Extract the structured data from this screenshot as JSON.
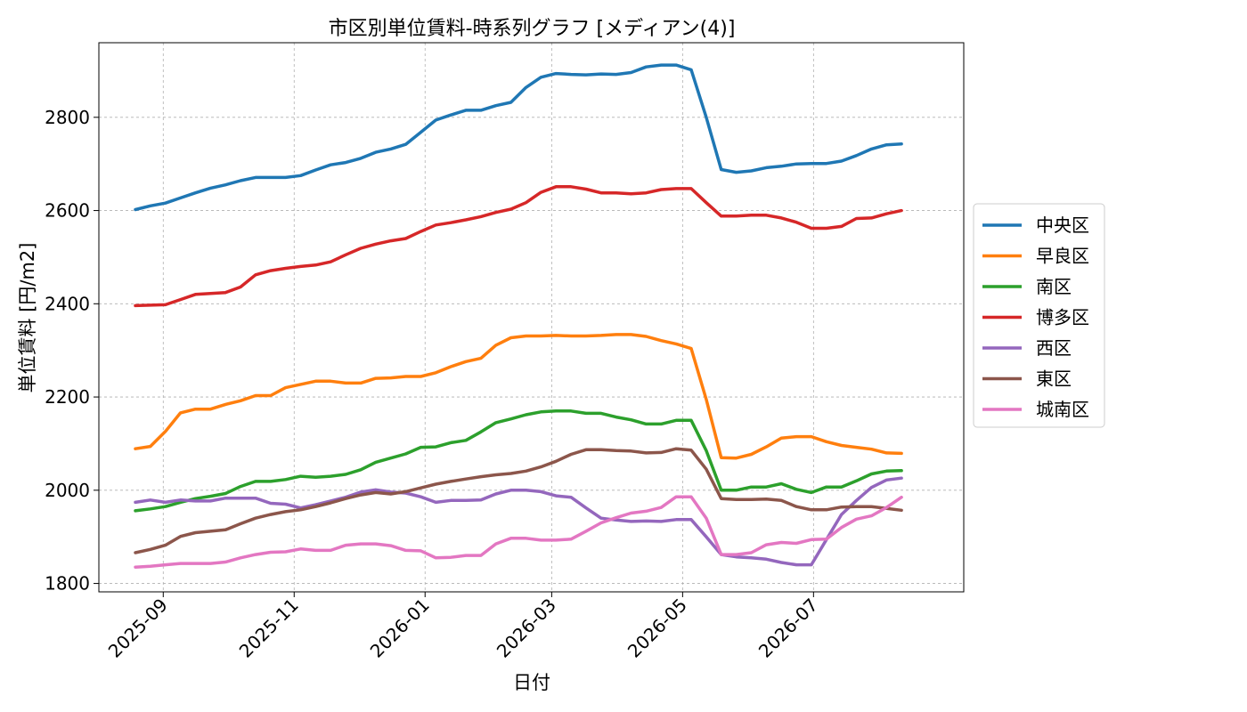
{
  "chart_data": {
    "type": "line",
    "title": "市区別単位賃料-時系列グラフ [メディアン(4)]",
    "xlabel": "日付",
    "ylabel": "単位賃料 [円/m2]",
    "ylim": [
      1782,
      2960
    ],
    "yticks": [
      1800,
      2000,
      2200,
      2400,
      2600,
      2800
    ],
    "xticks": [
      "2025-09",
      "2025-11",
      "2026-01",
      "2026-03",
      "2026-05",
      "2026-07"
    ],
    "xlim": [
      "2025-08-02",
      "2026-09-09"
    ],
    "grid": true,
    "legend_position": "right",
    "x": [
      "2025-08-19",
      "2025-08-26",
      "2025-09-02",
      "2025-09-09",
      "2025-09-16",
      "2025-09-23",
      "2025-09-30",
      "2025-10-07",
      "2025-10-14",
      "2025-10-21",
      "2025-10-28",
      "2025-11-04",
      "2025-11-11",
      "2025-11-18",
      "2025-11-25",
      "2025-12-02",
      "2025-12-09",
      "2025-12-16",
      "2025-12-23",
      "2025-12-30",
      "2026-01-06",
      "2026-01-13",
      "2026-01-20",
      "2026-01-27",
      "2026-02-03",
      "2026-02-10",
      "2026-02-17",
      "2026-02-24",
      "2026-03-03",
      "2026-03-10",
      "2026-03-17",
      "2026-03-24",
      "2026-03-31",
      "2026-04-07",
      "2026-04-14",
      "2026-04-21",
      "2026-04-28",
      "2026-05-05",
      "2026-05-12",
      "2026-05-19",
      "2026-05-26",
      "2026-06-02",
      "2026-06-09",
      "2026-06-16",
      "2026-06-23",
      "2026-06-30",
      "2026-07-07",
      "2026-07-14",
      "2026-07-21",
      "2026-07-28",
      "2026-08-04",
      "2026-08-11"
    ],
    "series": [
      {
        "name": "中央区",
        "color": "#1f77b4",
        "values": [
          2602,
          2610,
          2616,
          2627,
          2638,
          2648,
          2655,
          2664,
          2671,
          2671,
          2671,
          2675,
          2687,
          2698,
          2703,
          2712,
          2725,
          2732,
          2742,
          2768,
          2794,
          2805,
          2815,
          2815,
          2825,
          2832,
          2864,
          2886,
          2894,
          2892,
          2891,
          2893,
          2892,
          2896,
          2908,
          2912,
          2912,
          2902,
          2800,
          2688,
          2682,
          2685,
          2692,
          2695,
          2700,
          2701,
          2701,
          2706,
          2718,
          2732,
          2741,
          2743
        ]
      },
      {
        "name": "早良区",
        "color": "#ff7f0e",
        "values": [
          2089,
          2094,
          2126,
          2166,
          2174,
          2174,
          2184,
          2192,
          2203,
          2203,
          2220,
          2227,
          2234,
          2234,
          2230,
          2230,
          2240,
          2241,
          2244,
          2244,
          2252,
          2265,
          2276,
          2283,
          2311,
          2327,
          2331,
          2331,
          2332,
          2331,
          2331,
          2332,
          2334,
          2334,
          2330,
          2321,
          2314,
          2304,
          2195,
          2070,
          2069,
          2077,
          2093,
          2112,
          2115,
          2115,
          2104,
          2096,
          2092,
          2088,
          2080,
          2079
        ]
      },
      {
        "name": "南区",
        "color": "#2ca02c",
        "values": [
          1956,
          1960,
          1965,
          1974,
          1982,
          1987,
          1993,
          2008,
          2019,
          2019,
          2023,
          2030,
          2028,
          2030,
          2034,
          2044,
          2060,
          2069,
          2078,
          2092,
          2093,
          2102,
          2107,
          2125,
          2145,
          2153,
          2162,
          2168,
          2170,
          2170,
          2165,
          2165,
          2157,
          2151,
          2142,
          2142,
          2150,
          2150,
          2085,
          2000,
          2000,
          2007,
          2007,
          2014,
          2002,
          1995,
          2007,
          2007,
          2020,
          2035,
          2041,
          2042
        ]
      },
      {
        "name": "博多区",
        "color": "#d62728",
        "values": [
          2396,
          2397,
          2398,
          2409,
          2420,
          2422,
          2424,
          2436,
          2462,
          2471,
          2476,
          2480,
          2483,
          2490,
          2505,
          2519,
          2528,
          2535,
          2540,
          2555,
          2569,
          2574,
          2580,
          2587,
          2596,
          2603,
          2617,
          2639,
          2651,
          2651,
          2646,
          2638,
          2638,
          2636,
          2638,
          2645,
          2647,
          2647,
          2617,
          2588,
          2588,
          2590,
          2590,
          2584,
          2575,
          2562,
          2562,
          2566,
          2583,
          2584,
          2593,
          2600
        ]
      },
      {
        "name": "西区",
        "color": "#9467bd",
        "values": [
          1974,
          1979,
          1974,
          1979,
          1977,
          1977,
          1983,
          1983,
          1983,
          1972,
          1970,
          1962,
          1969,
          1977,
          1985,
          1996,
          2001,
          1996,
          1994,
          1986,
          1974,
          1978,
          1978,
          1979,
          1992,
          2000,
          2000,
          1997,
          1988,
          1985,
          1962,
          1940,
          1936,
          1933,
          1934,
          1933,
          1937,
          1937,
          1900,
          1862,
          1857,
          1855,
          1852,
          1845,
          1840,
          1840,
          1894,
          1948,
          1978,
          2006,
          2022,
          2026
        ]
      },
      {
        "name": "東区",
        "color": "#8c564b",
        "values": [
          1866,
          1873,
          1882,
          1901,
          1909,
          1912,
          1915,
          1928,
          1940,
          1948,
          1954,
          1958,
          1965,
          1973,
          1982,
          1990,
          1995,
          1992,
          1997,
          2005,
          2013,
          2019,
          2024,
          2029,
          2033,
          2036,
          2041,
          2050,
          2062,
          2077,
          2087,
          2087,
          2085,
          2084,
          2080,
          2081,
          2089,
          2086,
          2045,
          1982,
          1980,
          1980,
          1981,
          1978,
          1965,
          1958,
          1958,
          1964,
          1965,
          1965,
          1961,
          1957
        ]
      },
      {
        "name": "城南区",
        "color": "#e377c2",
        "values": [
          1835,
          1837,
          1840,
          1843,
          1843,
          1843,
          1846,
          1855,
          1862,
          1867,
          1868,
          1874,
          1871,
          1871,
          1882,
          1885,
          1885,
          1881,
          1871,
          1870,
          1855,
          1856,
          1860,
          1860,
          1885,
          1897,
          1897,
          1893,
          1893,
          1895,
          1912,
          1930,
          1941,
          1951,
          1955,
          1963,
          1986,
          1986,
          1940,
          1862,
          1862,
          1866,
          1883,
          1888,
          1886,
          1894,
          1895,
          1920,
          1938,
          1945,
          1963,
          1985
        ]
      }
    ]
  }
}
